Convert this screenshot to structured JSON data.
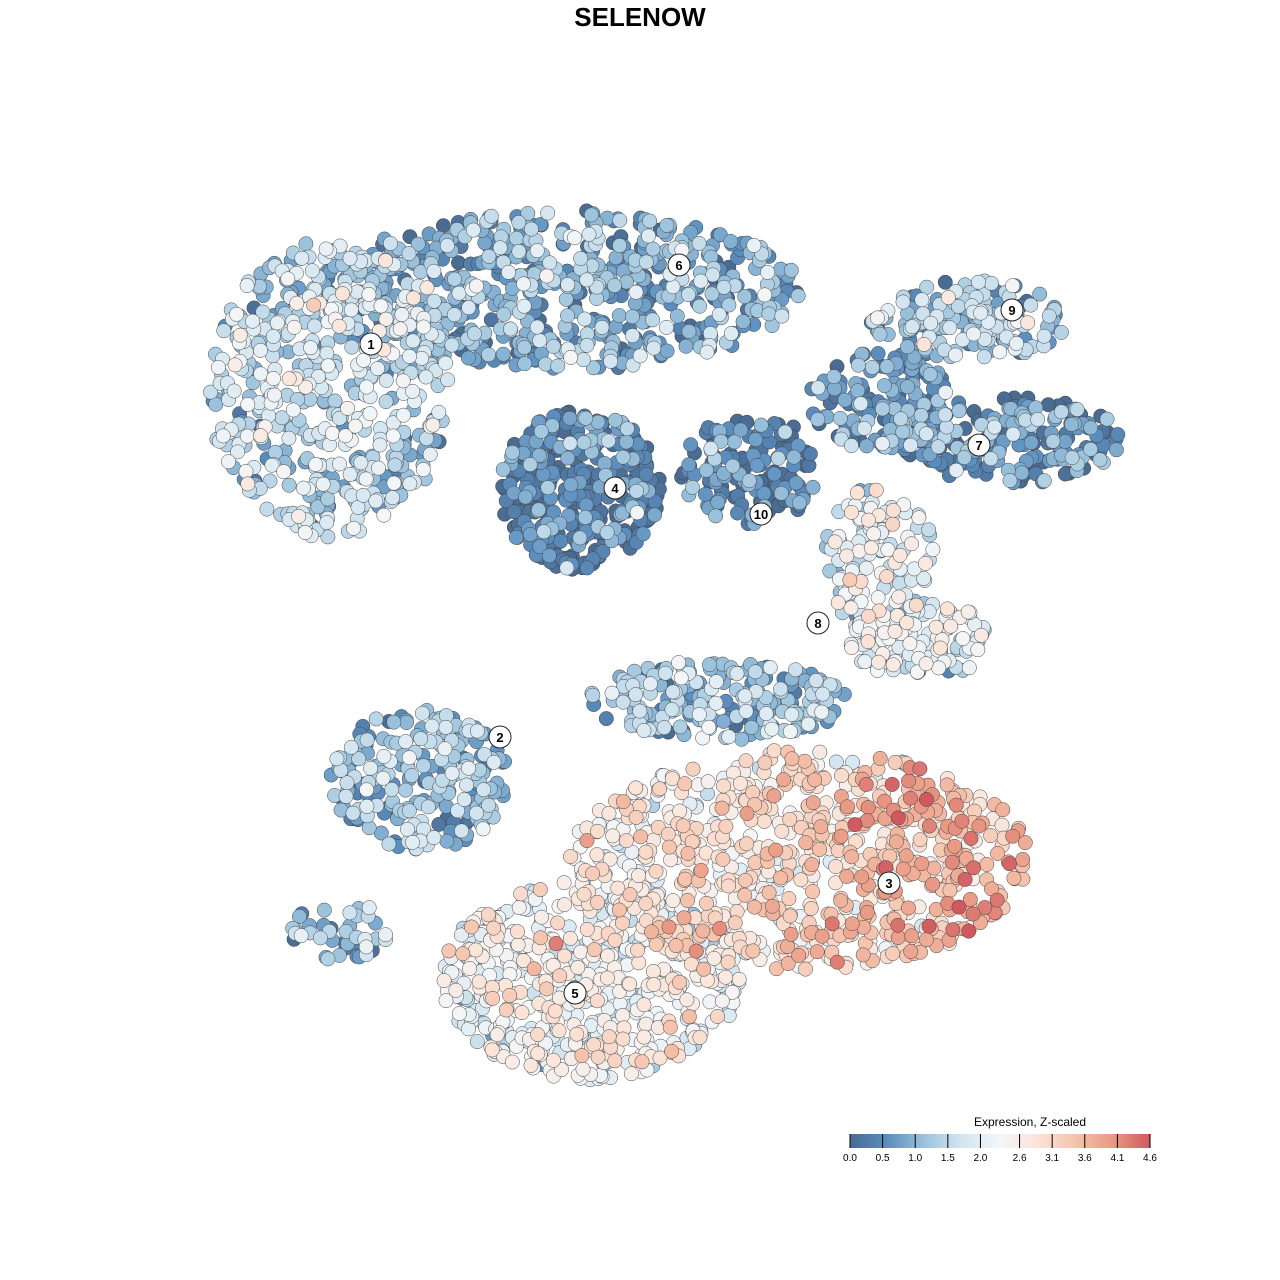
{
  "chart_data": {
    "type": "scatter",
    "title": "SELENOW",
    "xlabel": "",
    "ylabel": "",
    "grid": false,
    "legend": {
      "title": "Expression, Z-scaled",
      "placement": "bottom-right",
      "ticks": [
        "0.0",
        "0.5",
        "1.0",
        "1.5",
        "2.0",
        "2.6",
        "3.1",
        "3.6",
        "4.1",
        "4.6"
      ],
      "range": [
        0.0,
        4.6
      ],
      "colors": [
        "#4a6b92",
        "#5b8fc0",
        "#9dc4dd",
        "#d4e6f1",
        "#f3f6f8",
        "#fbe4d8",
        "#f5c3ac",
        "#e99a85",
        "#d0595f"
      ]
    },
    "clusters": [
      {
        "label": "1",
        "mean_expression": 1.5
      },
      {
        "label": "2",
        "mean_expression": 1.1
      },
      {
        "label": "3",
        "mean_expression": 3.0
      },
      {
        "label": "4",
        "mean_expression": 0.3
      },
      {
        "label": "5",
        "mean_expression": 2.3
      },
      {
        "label": "6",
        "mean_expression": 0.9
      },
      {
        "label": "7",
        "mean_expression": 0.6
      },
      {
        "label": "8",
        "mean_expression": 2.0
      },
      {
        "label": "9",
        "mean_expression": 1.2
      },
      {
        "label": "10",
        "mean_expression": 0.3
      }
    ]
  }
}
